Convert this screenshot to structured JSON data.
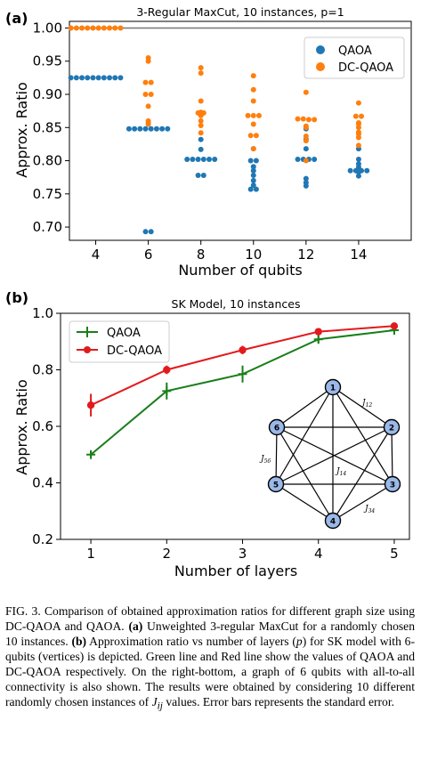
{
  "figure": {
    "panel_a_tag": "(a)",
    "panel_b_tag": "(b)"
  },
  "chart_data": [
    {
      "type": "scatter",
      "title": "3-Regular MaxCut, 10 instances, p=1",
      "xlabel": "Number of qubits",
      "ylabel": "Approx. Ratio",
      "xlim": [
        3,
        16
      ],
      "ylim": [
        0.68,
        1.01
      ],
      "xticks": [
        4,
        6,
        8,
        10,
        12,
        14
      ],
      "yticks": [
        0.7,
        0.75,
        0.8,
        0.85,
        0.9,
        0.95,
        1.0
      ],
      "ytick_labels": [
        "0.70",
        "0.75",
        "0.80",
        "0.85",
        "0.90",
        "0.95",
        "1.00"
      ],
      "reference_line": 1.0,
      "legend": "top-right",
      "series": [
        {
          "name": "QAOA",
          "color": "#1f77b4",
          "points": [
            {
              "x": 4,
              "values": [
                0.925,
                0.925,
                0.925,
                0.925,
                0.925,
                0.925,
                0.925,
                0.925,
                0.925,
                0.925
              ]
            },
            {
              "x": 6,
              "values": [
                0.848,
                0.848,
                0.848,
                0.848,
                0.848,
                0.848,
                0.848,
                0.848,
                0.693,
                0.693
              ]
            },
            {
              "x": 8,
              "values": [
                0.832,
                0.817,
                0.802,
                0.802,
                0.802,
                0.802,
                0.802,
                0.802,
                0.778,
                0.778
              ]
            },
            {
              "x": 10,
              "values": [
                0.818,
                0.8,
                0.8,
                0.791,
                0.785,
                0.778,
                0.77,
                0.763,
                0.757,
                0.757
              ]
            },
            {
              "x": 12,
              "values": [
                0.848,
                0.832,
                0.818,
                0.802,
                0.802,
                0.802,
                0.802,
                0.773,
                0.767,
                0.762
              ]
            },
            {
              "x": 14,
              "values": [
                0.818,
                0.802,
                0.795,
                0.79,
                0.785,
                0.785,
                0.785,
                0.785,
                0.783,
                0.777
              ]
            }
          ]
        },
        {
          "name": "DC-QAOA",
          "color": "#ff7f0e",
          "points": [
            {
              "x": 4,
              "values": [
                1.0,
                1.0,
                1.0,
                1.0,
                1.0,
                1.0,
                1.0,
                1.0,
                1.0,
                1.0
              ]
            },
            {
              "x": 6,
              "values": [
                0.955,
                0.95,
                0.918,
                0.918,
                0.9,
                0.9,
                0.882,
                0.86,
                0.857,
                0.855
              ]
            },
            {
              "x": 8,
              "values": [
                0.94,
                0.932,
                0.89,
                0.873,
                0.872,
                0.872,
                0.868,
                0.86,
                0.853,
                0.842
              ]
            },
            {
              "x": 10,
              "values": [
                0.928,
                0.907,
                0.89,
                0.868,
                0.868,
                0.868,
                0.855,
                0.838,
                0.838,
                0.818
              ]
            },
            {
              "x": 12,
              "values": [
                0.903,
                0.863,
                0.863,
                0.862,
                0.862,
                0.852,
                0.85,
                0.837,
                0.83,
                0.8
              ]
            },
            {
              "x": 14,
              "values": [
                0.887,
                0.867,
                0.867,
                0.857,
                0.855,
                0.85,
                0.843,
                0.84,
                0.835,
                0.823
              ]
            }
          ]
        }
      ]
    },
    {
      "type": "line",
      "title": "SK Model, 10 instances",
      "xlabel": "Number of layers",
      "ylabel": "Approx. Ratio",
      "x": [
        1,
        2,
        3,
        4,
        5
      ],
      "xlim": [
        0.6,
        5.2
      ],
      "ylim": [
        0.2,
        1.0
      ],
      "xticks": [
        1,
        2,
        3,
        4,
        5
      ],
      "yticks": [
        0.2,
        0.4,
        0.6,
        0.8,
        1.0
      ],
      "ytick_labels": [
        "0.2",
        "0.4",
        "0.6",
        "0.8",
        "1.0"
      ],
      "legend": "top-left",
      "series": [
        {
          "name": "QAOA",
          "color": "#1a7f1a",
          "marker": "+",
          "values": [
            0.5,
            0.725,
            0.785,
            0.908,
            0.94
          ],
          "errors": [
            0.01,
            0.03,
            0.03,
            0.012,
            0.01
          ]
        },
        {
          "name": "DC-QAOA",
          "color": "#e31a1c",
          "marker": "o",
          "values": [
            0.675,
            0.8,
            0.87,
            0.935,
            0.955
          ],
          "errors": [
            0.04,
            0.015,
            0.015,
            0.01,
            0.008
          ]
        }
      ],
      "inset_graph": {
        "nodes": [
          "1",
          "2",
          "3",
          "4",
          "5",
          "6"
        ],
        "edge_labels": [
          "J12",
          "J14",
          "J34",
          "J56"
        ]
      }
    }
  ],
  "caption": {
    "prefix": "FIG. 3.  Comparison of obtained approximation ratios for different graph size using DC-QAOA and QAOA. ",
    "a_tag": "(a)",
    "a_text": " Unweighted 3-regular MaxCut for a randomly chosen 10 instances. ",
    "b_tag": "(b)",
    "b_text": " Approximation ratio vs number of layers (",
    "p_sym": "p",
    "b_text2": ") for SK model with 6-qubits (vertices) is depicted.  Green line and Red line show the values of QAOA and DC-QAOA respectively.  On the right-bottom, a graph of 6 qubits with all-to-all connectivity is also shown. The results were obtained by considering 10 different randomly chosen instances of ",
    "j_sym": "J",
    "j_sub": "ij",
    "b_text3": " values. Error bars represents the standard error."
  }
}
